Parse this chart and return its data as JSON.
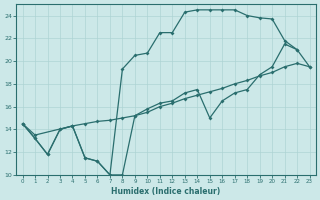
{
  "xlabel": "Humidex (Indice chaleur)",
  "bg_color": "#cce8e8",
  "grid_color": "#aed4d4",
  "line_color": "#2a6e6e",
  "xlim": [
    -0.5,
    23.5
  ],
  "ylim": [
    10,
    25
  ],
  "yticks": [
    10,
    12,
    14,
    16,
    18,
    20,
    22,
    24
  ],
  "xticks": [
    0,
    1,
    2,
    3,
    4,
    5,
    6,
    7,
    8,
    9,
    10,
    11,
    12,
    13,
    14,
    15,
    16,
    17,
    18,
    19,
    20,
    21,
    22,
    23
  ],
  "line1_x": [
    0,
    1,
    2,
    3,
    4,
    5,
    6,
    7,
    8,
    9,
    10,
    11,
    12,
    13,
    14,
    15,
    16,
    17,
    18,
    19,
    20,
    21,
    22,
    23
  ],
  "line1_y": [
    14.5,
    13.2,
    11.8,
    14.0,
    14.3,
    11.5,
    11.2,
    10.0,
    10.0,
    15.2,
    15.8,
    16.3,
    16.5,
    17.2,
    17.5,
    15.0,
    16.5,
    17.2,
    17.5,
    18.8,
    19.5,
    21.5,
    21.0,
    19.5
  ],
  "line2_x": [
    0,
    1,
    2,
    3,
    4,
    5,
    6,
    7,
    8,
    9,
    10,
    11,
    12,
    13,
    14,
    15,
    16,
    17,
    18,
    19,
    20,
    21,
    22
  ],
  "line2_y": [
    14.5,
    13.2,
    11.8,
    14.0,
    14.3,
    11.5,
    11.2,
    10.0,
    19.3,
    20.5,
    20.7,
    22.5,
    22.5,
    24.3,
    24.5,
    24.5,
    24.5,
    24.5,
    24.0,
    23.8,
    23.7,
    21.8,
    21.0
  ],
  "line3_x": [
    0,
    1,
    4,
    5,
    6,
    7,
    8,
    9,
    10,
    11,
    12,
    13,
    14,
    15,
    16,
    17,
    18,
    19,
    20,
    21,
    22,
    23
  ],
  "line3_y": [
    14.5,
    13.5,
    14.3,
    14.5,
    14.7,
    14.8,
    15.0,
    15.2,
    15.5,
    16.0,
    16.3,
    16.7,
    17.0,
    17.3,
    17.6,
    18.0,
    18.3,
    18.7,
    19.0,
    19.5,
    19.8,
    19.5
  ]
}
